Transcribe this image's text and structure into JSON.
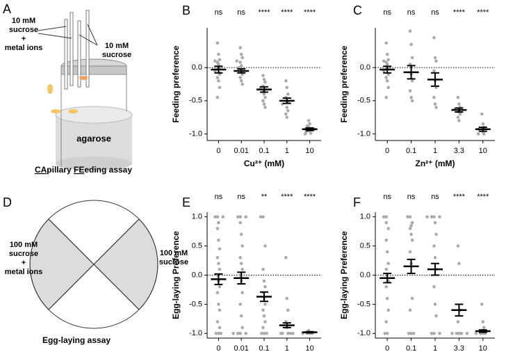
{
  "panels": {
    "A": {
      "label": "A",
      "left_text": [
        "10 mM",
        "sucrose",
        "+",
        "metal ions"
      ],
      "right_text": [
        "10 mM",
        "sucrose"
      ],
      "agarose": "agarose",
      "caption_parts": [
        "CA",
        "pillary ",
        "FE",
        "eding assay"
      ]
    },
    "D": {
      "label": "D",
      "left_text": [
        "100 mM",
        "sucrose",
        "+",
        "metal ions"
      ],
      "right_text": [
        "100 mM",
        "sucrose"
      ],
      "caption": "Egg-laying assay"
    }
  },
  "chart_data": [
    {
      "type": "dot",
      "panel_label": "B",
      "ylabel": "Feeding preference",
      "xlabel": "Cu²⁺ (mM)",
      "categories": [
        "0",
        "0.01",
        "0.1",
        "1",
        "10"
      ],
      "significance": [
        "ns",
        "ns",
        "****",
        "****",
        "****"
      ],
      "ylim": [
        -1.1,
        0.6
      ],
      "yticks": [
        {
          "value": -1,
          "label": "-1.0"
        },
        {
          "value": -0.5,
          "label": "-0.5"
        },
        {
          "value": 0,
          "label": "0.0"
        }
      ],
      "hline": 0,
      "point_color": "#aaaaaa",
      "means": [
        -0.03,
        -0.05,
        -0.33,
        -0.5,
        -0.93
      ],
      "sems": [
        0.05,
        0.03,
        0.04,
        0.04,
        0.02
      ],
      "points": [
        [
          0.37,
          0.2,
          0.12,
          0.08,
          0.05,
          0,
          -0.02,
          -0.05,
          -0.1,
          -0.15,
          -0.2,
          -0.3,
          -0.45,
          0.1,
          -0.08
        ],
        [
          0.3,
          0.2,
          0.15,
          0.08,
          0.03,
          0,
          -0.03,
          -0.06,
          -0.1,
          -0.15,
          -0.2,
          -0.25,
          0.1
        ],
        [
          -0.12,
          -0.18,
          -0.22,
          -0.28,
          -0.3,
          -0.33,
          -0.37,
          -0.4,
          -0.45,
          -0.5,
          -0.55,
          -0.6
        ],
        [
          -0.2,
          -0.3,
          -0.4,
          -0.45,
          -0.5,
          -0.52,
          -0.55,
          -0.6,
          -0.65,
          -0.7,
          -0.75
        ],
        [
          -0.8,
          -0.85,
          -0.88,
          -0.9,
          -0.92,
          -0.93,
          -0.95,
          -0.97,
          -0.99,
          -1
        ]
      ]
    },
    {
      "type": "dot",
      "panel_label": "C",
      "ylabel": "Feeding preference",
      "xlabel": "Zn²⁺ (mM)",
      "categories": [
        "0",
        "0.1",
        "1",
        "3.3",
        "10"
      ],
      "significance": [
        "ns",
        "ns",
        "ns",
        "****",
        "****"
      ],
      "ylim": [
        -1.1,
        0.6
      ],
      "yticks": [
        {
          "value": -1,
          "label": "-1.0"
        },
        {
          "value": -0.5,
          "label": "-0.5"
        },
        {
          "value": 0,
          "label": "0.0"
        }
      ],
      "hline": 0,
      "point_color": "#aaaaaa",
      "means": [
        -0.03,
        -0.07,
        -0.18,
        -0.64,
        -0.93
      ],
      "sems": [
        0.05,
        0.1,
        0.1,
        0.03,
        0.03
      ],
      "points": [
        [
          0.37,
          0.2,
          0.12,
          0.08,
          0.05,
          0,
          -0.02,
          -0.05,
          -0.1,
          -0.15,
          -0.2,
          -0.3,
          -0.45,
          0.1
        ],
        [
          0.55,
          0.35,
          0.15,
          0.05,
          -0.1,
          -0.2,
          -0.35,
          -0.45,
          -0.5
        ],
        [
          0.45,
          0.15,
          0.1,
          -0.05,
          -0.2,
          -0.3,
          -0.45,
          -0.55,
          -0.6
        ],
        [
          -0.45,
          -0.55,
          -0.6,
          -0.63,
          -0.67,
          -0.7,
          -0.75,
          -0.8
        ],
        [
          -0.7,
          -0.85,
          -0.9,
          -0.93,
          -0.97,
          -1,
          -1
        ]
      ]
    },
    {
      "type": "dot",
      "panel_label": "E",
      "ylabel": "Egg-laying Preference",
      "xlabel": "Cu²⁺ (mM)",
      "categories": [
        "0",
        "0.01",
        "0.1",
        "1",
        "10"
      ],
      "significance": [
        "ns",
        "ns",
        "**",
        "****",
        "****"
      ],
      "ylim": [
        -1.08,
        1.08
      ],
      "yticks": [
        {
          "value": -1,
          "label": "-1.0"
        },
        {
          "value": -0.5,
          "label": "-0.5"
        },
        {
          "value": 0,
          "label": "0.0"
        },
        {
          "value": 0.5,
          "label": "0.5"
        },
        {
          "value": 1,
          "label": "1.0"
        }
      ],
      "hline": 0,
      "point_color": "#aaaaaa",
      "means": [
        -0.07,
        -0.05,
        -0.37,
        -0.86,
        -0.98
      ],
      "sems": [
        0.09,
        0.1,
        0.08,
        0.04,
        0.01
      ],
      "points": [
        [
          1,
          1,
          1,
          0.8,
          0.6,
          0.45,
          0.3,
          0.2,
          0.1,
          0,
          -0.1,
          -0.2,
          -0.3,
          -0.5,
          -0.6,
          -0.8,
          -1,
          -1,
          -1,
          0.9,
          -0.9
        ],
        [
          1,
          1,
          1,
          0.9,
          0.7,
          0.5,
          0.3,
          0.2,
          0.1,
          0,
          -0.1,
          -0.3,
          -0.5,
          -0.7,
          -0.9,
          -1,
          -1,
          -1,
          -1
        ],
        [
          1,
          1,
          0.5,
          0.1,
          -0.1,
          -0.2,
          -0.3,
          -0.4,
          -0.5,
          -0.6,
          -0.7,
          -0.8,
          -0.9,
          -1,
          -1,
          -1
        ],
        [
          0.3,
          -0.4,
          -0.6,
          -0.8,
          -0.9,
          -1,
          -1,
          -1,
          -1,
          -1
        ],
        [
          -0.95,
          -1,
          -1,
          -1,
          -1
        ]
      ]
    },
    {
      "type": "dot",
      "panel_label": "F",
      "ylabel": "Egg-laying Preference",
      "xlabel": "Zn²⁺ (mM)",
      "categories": [
        "0",
        "0.1",
        "1",
        "3.3",
        "10"
      ],
      "significance": [
        "ns",
        "ns",
        "ns",
        "****",
        "****"
      ],
      "ylim": [
        -1.08,
        1.08
      ],
      "yticks": [
        {
          "value": -1,
          "label": "-1.0"
        },
        {
          "value": -0.5,
          "label": "-0.5"
        },
        {
          "value": 0,
          "label": "0.0"
        },
        {
          "value": 0.5,
          "label": "0.5"
        },
        {
          "value": 1,
          "label": "1.0"
        }
      ],
      "hline": 0,
      "point_color": "#aaaaaa",
      "means": [
        -0.05,
        0.15,
        0.1,
        -0.6,
        -0.96
      ],
      "sems": [
        0.08,
        0.12,
        0.1,
        0.1,
        0.02
      ],
      "points": [
        [
          1,
          1,
          0.8,
          0.6,
          0.4,
          0.2,
          0.1,
          0,
          -0.1,
          -0.2,
          -0.4,
          -0.6,
          -0.8,
          -1,
          -1,
          0.9
        ],
        [
          1,
          1,
          0.9,
          0.8,
          0.7,
          0.6,
          0.4,
          0.2,
          -0.4,
          -0.6,
          -1,
          -1,
          -1,
          0.85
        ],
        [
          1,
          1,
          1,
          1,
          0.9,
          0.7,
          0.5,
          0.3,
          0.1,
          -0.2,
          -0.5,
          -0.7,
          -1,
          -1,
          -1
        ],
        [
          0.5,
          0.2,
          -0.6,
          -0.8,
          -1,
          -1,
          -1,
          -1,
          -1
        ],
        [
          -0.5,
          -0.8,
          -0.9,
          -0.95,
          -1,
          -1,
          -1,
          -1
        ]
      ]
    }
  ]
}
